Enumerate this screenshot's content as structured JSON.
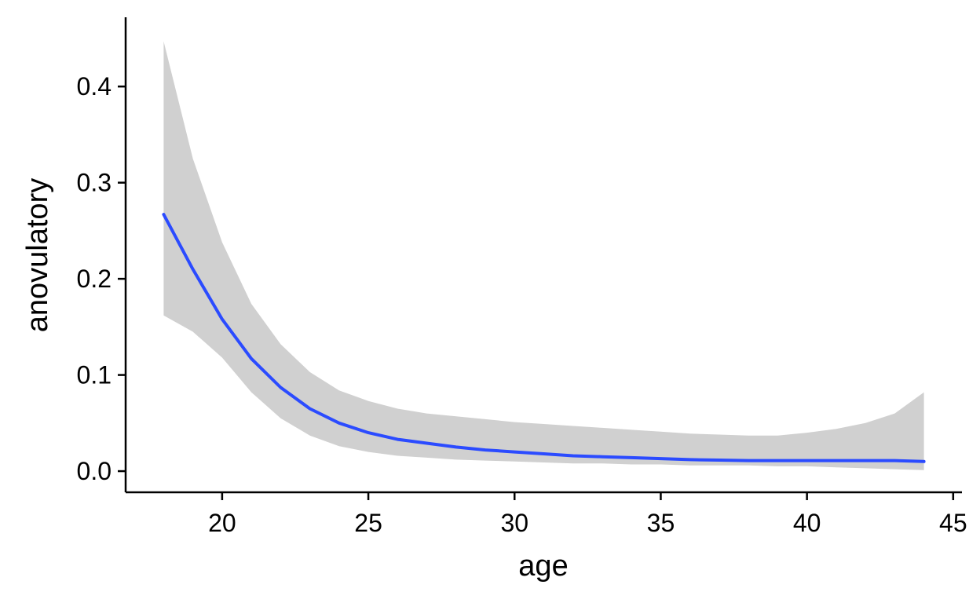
{
  "chart_data": {
    "type": "line",
    "title": "",
    "xlabel": "age",
    "ylabel": "anovulatory",
    "xlim": [
      16.7,
      45.3
    ],
    "ylim": [
      -0.022,
      0.472
    ],
    "xticks": [
      20,
      25,
      30,
      35,
      40,
      45
    ],
    "xtick_labels": [
      "20",
      "25",
      "30",
      "35",
      "40",
      "45"
    ],
    "yticks": [
      0.0,
      0.1,
      0.2,
      0.3,
      0.4
    ],
    "ytick_labels": [
      "0.0",
      "0.1",
      "0.2",
      "0.3",
      "0.4"
    ],
    "grid": false,
    "legend": "none",
    "colors": {
      "line": "#2b4bff",
      "band": "#d0d0d0",
      "axis": "#000000"
    },
    "series": [
      {
        "x": [
          18,
          19,
          20,
          21,
          22,
          23,
          24,
          25,
          26,
          27,
          28,
          29,
          30,
          31,
          32,
          33,
          34,
          35,
          36,
          37,
          38,
          39,
          40,
          41,
          42,
          43,
          44
        ],
        "y": [
          0.267,
          0.21,
          0.158,
          0.117,
          0.087,
          0.065,
          0.05,
          0.04,
          0.033,
          0.029,
          0.025,
          0.022,
          0.02,
          0.018,
          0.016,
          0.015,
          0.014,
          0.013,
          0.012,
          0.0115,
          0.011,
          0.011,
          0.011,
          0.011,
          0.011,
          0.011,
          0.01
        ],
        "lower": [
          0.162,
          0.145,
          0.118,
          0.082,
          0.055,
          0.037,
          0.026,
          0.02,
          0.016,
          0.014,
          0.012,
          0.011,
          0.01,
          0.009,
          0.008,
          0.008,
          0.007,
          0.007,
          0.006,
          0.006,
          0.006,
          0.005,
          0.005,
          0.004,
          0.003,
          0.002,
          0.001
        ],
        "upper": [
          0.447,
          0.325,
          0.238,
          0.174,
          0.132,
          0.103,
          0.084,
          0.073,
          0.065,
          0.06,
          0.057,
          0.054,
          0.051,
          0.049,
          0.047,
          0.045,
          0.043,
          0.041,
          0.039,
          0.038,
          0.037,
          0.037,
          0.04,
          0.044,
          0.05,
          0.06,
          0.082
        ]
      }
    ]
  }
}
